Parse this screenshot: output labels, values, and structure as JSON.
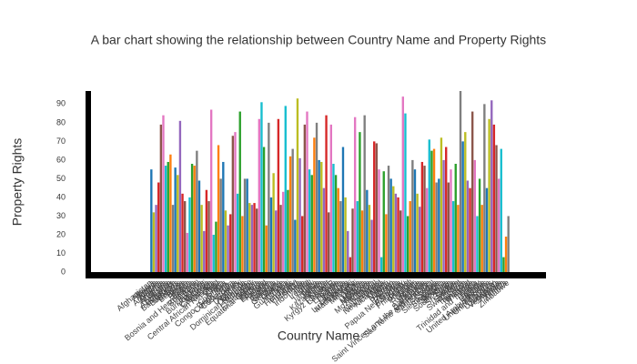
{
  "chart_data": {
    "type": "bar",
    "title": "A bar chart showing the relationship between Country Name and Property Rights",
    "x_label": "Country Name",
    "y_label": "Property Rights",
    "categories": [
      "Afghanistan",
      "Albania",
      "Algeria",
      "Angola",
      "Argentina",
      "Armenia",
      "Australia",
      "Austria",
      "Azerbaijan",
      "Bahamas",
      "Bangladesh",
      "Barbados",
      "Belarus",
      "Belgium",
      "Belize",
      "Benin",
      "Bhutan",
      "Bolivia",
      "Bosnia and Herzegovina",
      "Botswana",
      "Brazil",
      "Bulgaria",
      "Burkina Faso",
      "Burundi",
      "Cambodia",
      "Cameroon",
      "Canada",
      "Central African Republic",
      "Chad",
      "Chile",
      "China",
      "Colombia",
      "Congo, Dem. Rep.",
      "Congo, Rep.",
      "Costa Rica",
      "Croatia",
      "Cyprus",
      "Denmark",
      "Djibouti",
      "Dominica",
      "Dominican Republic",
      "Ecuador",
      "Egypt",
      "El Salvador",
      "Equatorial Guinea",
      "Eritrea",
      "Estonia",
      "Ethiopia",
      "Finland",
      "France",
      "Gabon",
      "Gambia",
      "Georgia",
      "Germany",
      "Ghana",
      "Greece",
      "Guatemala",
      "Guinea",
      "Haiti",
      "Honduras",
      "Hungary",
      "Iceland",
      "India",
      "Indonesia",
      "Iran",
      "Iraq",
      "Ireland",
      "Israel",
      "Italy",
      "Jamaica",
      "Japan",
      "Jordan",
      "Kazakhstan",
      "Kenya",
      "Kuwait",
      "Kyrgyz Republic",
      "Lao PDR",
      "Latvia",
      "Lebanon",
      "Lesotho",
      "Liberia",
      "Lithuania",
      "Luxembourg",
      "Madagascar",
      "Malawi",
      "Malaysia",
      "Mali",
      "Malta",
      "Mexico",
      "Moldova",
      "Mongolia",
      "Morocco",
      "Mozambique",
      "Namibia",
      "Nepal",
      "Netherlands",
      "New Zealand",
      "Nicaragua",
      "Niger",
      "Nigeria",
      "Norway",
      "Oman",
      "Pakistan",
      "Panama",
      "Papua New Guinea",
      "Paraguay",
      "Peru",
      "Philippines",
      "Poland",
      "Portugal",
      "Qatar",
      "Romania",
      "Russia",
      "Rwanda",
      "Saint Lucia",
      "Saint Vincent and the Grenadines",
      "Sao Tome and Principe",
      "Saudi Arabia",
      "Senegal",
      "Serbia",
      "Sierra Leone",
      "Singapore",
      "Slovakia",
      "Slovenia",
      "South Africa",
      "Spain",
      "Sri Lanka",
      "Sudan",
      "Sweden",
      "Switzerland",
      "Syria",
      "Tajikistan",
      "Tanzania",
      "Thailand",
      "Togo",
      "Trinidad and Tobago",
      "Tunisia",
      "Turkey",
      "Uganda",
      "Ukraine",
      "United Arab Emirates",
      "United Kingdom",
      "United States",
      "Uruguay",
      "Uzbekistan",
      "Venezuela",
      "Vietnam",
      "Yemen",
      "Zambia",
      "Zimbabwe"
    ],
    "values": [
      55,
      32,
      36,
      48,
      79,
      84,
      57,
      59,
      63,
      36,
      56,
      52,
      81,
      42,
      38,
      21,
      40,
      58,
      57,
      65,
      49,
      36,
      22,
      44,
      38,
      87,
      20,
      27,
      68,
      50,
      59,
      33,
      25,
      31,
      73,
      75,
      42,
      86,
      30,
      50,
      50,
      37,
      36,
      37,
      34,
      82,
      91,
      67,
      25,
      80,
      40,
      53,
      33,
      82,
      36,
      43,
      89,
      44,
      62,
      66,
      28,
      93,
      61,
      30,
      79,
      86,
      55,
      52,
      72,
      80,
      60,
      59,
      45,
      84,
      32,
      79,
      58,
      52,
      45,
      38,
      67,
      40,
      22,
      8,
      34,
      83,
      38,
      75,
      33,
      84,
      44,
      36,
      28,
      70,
      69,
      55,
      8,
      54,
      31,
      57,
      50,
      46,
      42,
      40,
      33,
      94,
      85,
      30,
      38,
      60,
      55,
      42,
      35,
      59,
      57,
      45,
      71,
      65,
      66,
      48,
      50,
      72,
      60,
      67,
      48,
      55,
      38,
      58,
      36,
      97,
      70,
      75,
      49,
      45,
      86,
      60,
      30,
      50,
      36,
      90,
      45,
      82,
      92,
      79,
      68,
      50,
      66,
      8,
      19,
      30
    ],
    "colors": [
      "#1f77b4",
      "#bcbd22",
      "#9467bd",
      "#d62728",
      "#8c564b",
      "#e377c2",
      "#17becf",
      "#2ca02c",
      "#ff7f0e",
      "#7f7f7f"
    ],
    "ylim": [
      0,
      97
    ],
    "yticks": [
      0,
      10,
      20,
      30,
      40,
      50,
      60,
      70,
      80,
      90
    ]
  }
}
